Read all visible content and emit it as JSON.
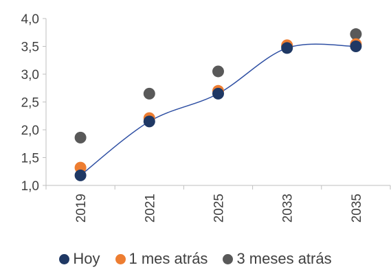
{
  "chart_data": {
    "type": "scatter",
    "categories": [
      "2019",
      "2021",
      "2025",
      "2033",
      "2035"
    ],
    "ylim": [
      1.0,
      4.0
    ],
    "yticks": [
      "1,0",
      "1,5",
      "2,0",
      "2,5",
      "3,0",
      "3,5",
      "4,0"
    ],
    "series": [
      {
        "name": "1 mes atrás",
        "values": [
          1.32,
          2.21,
          2.7,
          3.52,
          3.54
        ],
        "color": "#ED7D31"
      },
      {
        "name": "3 meses atrás",
        "values": [
          1.86,
          2.65,
          3.05,
          3.5,
          3.72
        ],
        "color": "#595959"
      },
      {
        "name": "Hoy",
        "values": [
          1.18,
          2.15,
          2.65,
          3.47,
          3.5
        ],
        "color": "#1F3864"
      }
    ],
    "trendline": {
      "series": "Hoy",
      "type": "polynomial",
      "color": "#2E4FA3"
    },
    "grid": false,
    "legend": {
      "position": "bottom",
      "order": [
        "Hoy",
        "1 mes atrás",
        "3 meses atrás"
      ]
    }
  }
}
